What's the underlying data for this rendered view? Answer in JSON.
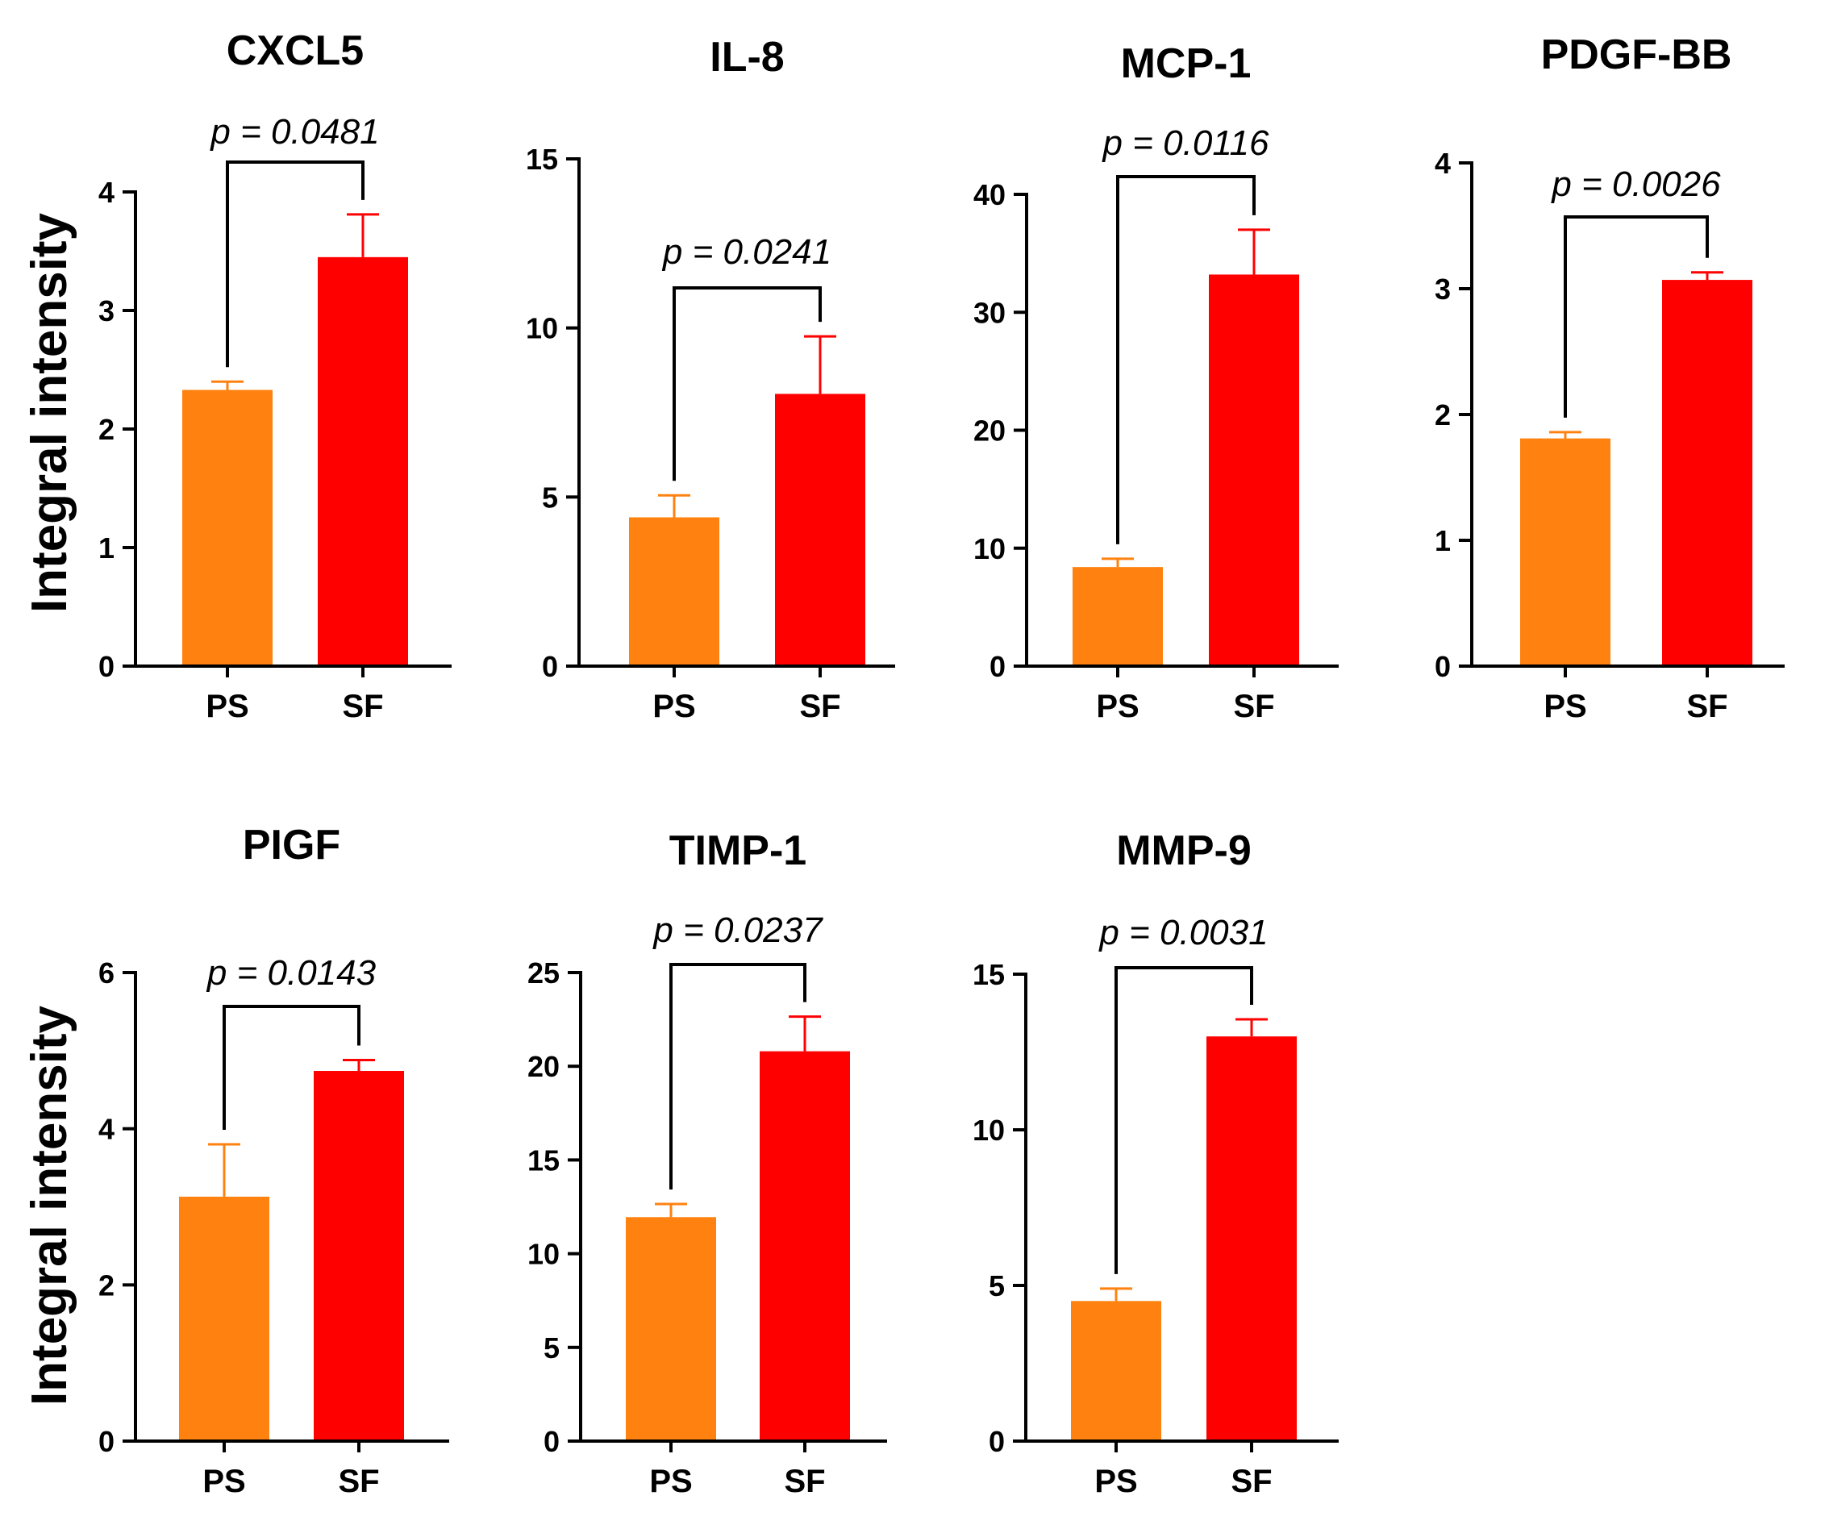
{
  "colors": {
    "PS": "#FF8210",
    "SF": "#FF0000",
    "axis": "#000000"
  },
  "row_ylabels": [
    "Integral intensity",
    "Integral intensity"
  ],
  "chart_data": [
    {
      "type": "bar",
      "title": "CXCL5",
      "categories": [
        "PS",
        "SF"
      ],
      "values": [
        2.33,
        3.45
      ],
      "errors": [
        0.07,
        0.36
      ],
      "ylim": [
        0,
        4
      ],
      "yticks": [
        0,
        1,
        2,
        3,
        4
      ],
      "ylabel": "Integral intensity",
      "p_value": "p = 0.0481"
    },
    {
      "type": "bar",
      "title": "IL-8",
      "categories": [
        "PS",
        "SF"
      ],
      "values": [
        4.4,
        8.05
      ],
      "errors": [
        0.65,
        1.7
      ],
      "ylim": [
        0,
        15
      ],
      "yticks": [
        0,
        5,
        10,
        15
      ],
      "ylabel": "",
      "p_value": "p = 0.0241"
    },
    {
      "type": "bar",
      "title": "MCP-1",
      "categories": [
        "PS",
        "SF"
      ],
      "values": [
        8.4,
        33.2
      ],
      "errors": [
        0.7,
        3.8
      ],
      "ylim": [
        0,
        40
      ],
      "yticks": [
        0,
        10,
        20,
        30,
        40
      ],
      "ylabel": "",
      "p_value": "p = 0.0116"
    },
    {
      "type": "bar",
      "title": "PDGF-BB",
      "categories": [
        "PS",
        "SF"
      ],
      "values": [
        1.81,
        3.07
      ],
      "errors": [
        0.05,
        0.06
      ],
      "ylim": [
        0,
        4
      ],
      "yticks": [
        0,
        1,
        2,
        3,
        4
      ],
      "ylabel": "",
      "p_value": "p = 0.0026"
    },
    {
      "type": "bar",
      "title": "PIGF",
      "categories": [
        "PS",
        "SF"
      ],
      "values": [
        3.13,
        4.74
      ],
      "errors": [
        0.67,
        0.14
      ],
      "ylim": [
        0,
        6
      ],
      "yticks": [
        0,
        2,
        4,
        6
      ],
      "ylabel": "Integral intensity",
      "p_value": "p = 0.0143"
    },
    {
      "type": "bar",
      "title": "TIMP-1",
      "categories": [
        "PS",
        "SF"
      ],
      "values": [
        11.95,
        20.8
      ],
      "errors": [
        0.7,
        1.85
      ],
      "ylim": [
        0,
        25
      ],
      "yticks": [
        0,
        5,
        10,
        15,
        20,
        25
      ],
      "ylabel": "",
      "p_value": "p = 0.0237"
    },
    {
      "type": "bar",
      "title": "MMP-9",
      "categories": [
        "PS",
        "SF"
      ],
      "values": [
        4.5,
        13.0
      ],
      "errors": [
        0.4,
        0.55
      ],
      "ylim": [
        0,
        15
      ],
      "yticks": [
        0,
        5,
        10,
        15
      ],
      "ylabel": "",
      "p_value": "p = 0.0031"
    }
  ]
}
